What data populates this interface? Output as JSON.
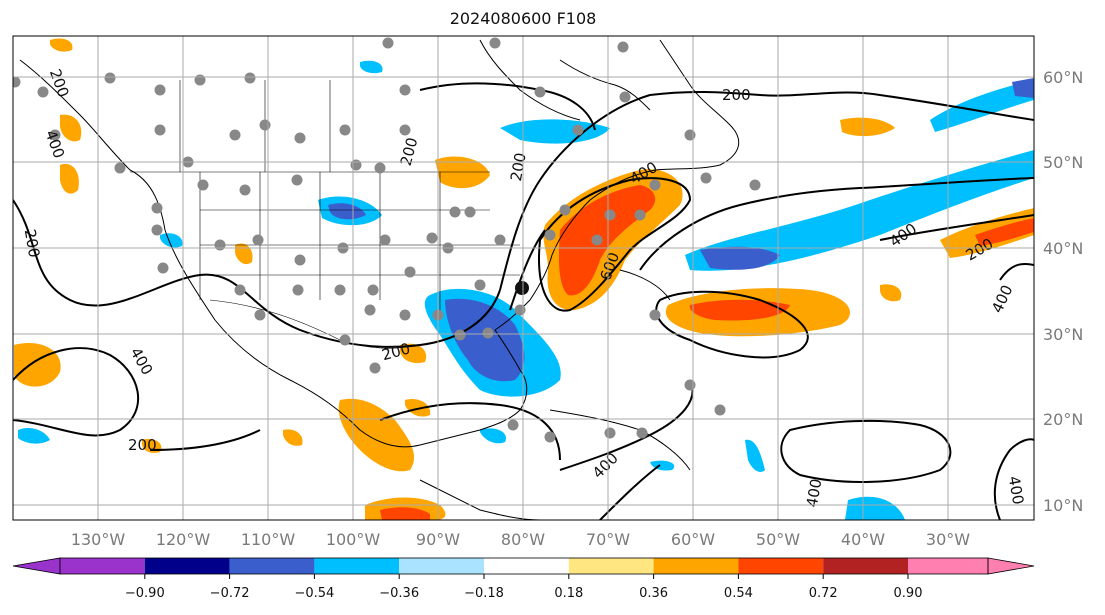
{
  "title": "2024080600 F108",
  "longitude_labels": [
    "130°W",
    "120°W",
    "110°W",
    "100°W",
    "90°W",
    "80°W",
    "70°W",
    "60°W",
    "50°W",
    "40°W",
    "30°W"
  ],
  "latitude_labels": [
    "60°N",
    "50°N",
    "40°N",
    "30°N",
    "20°N",
    "10°N"
  ],
  "contour_labels": [
    "200",
    "200",
    "200",
    "200",
    "200",
    "400",
    "400",
    "400",
    "600",
    "400",
    "200",
    "400",
    "400",
    "400",
    "200",
    "400",
    "200"
  ],
  "colorbar": {
    "tick_labels": [
      "−0.90",
      "−0.72",
      "−0.54",
      "−0.36",
      "−0.18",
      "0.18",
      "0.36",
      "0.54",
      "0.72",
      "0.90"
    ],
    "colors": [
      "#9933cc",
      "#00008b",
      "#3a5fcd",
      "#00bfff",
      "#aae3ff",
      "#ffffff",
      "#ffe680",
      "#ffa500",
      "#ff4500",
      "#b22222",
      "#ff7fb0"
    ]
  }
}
